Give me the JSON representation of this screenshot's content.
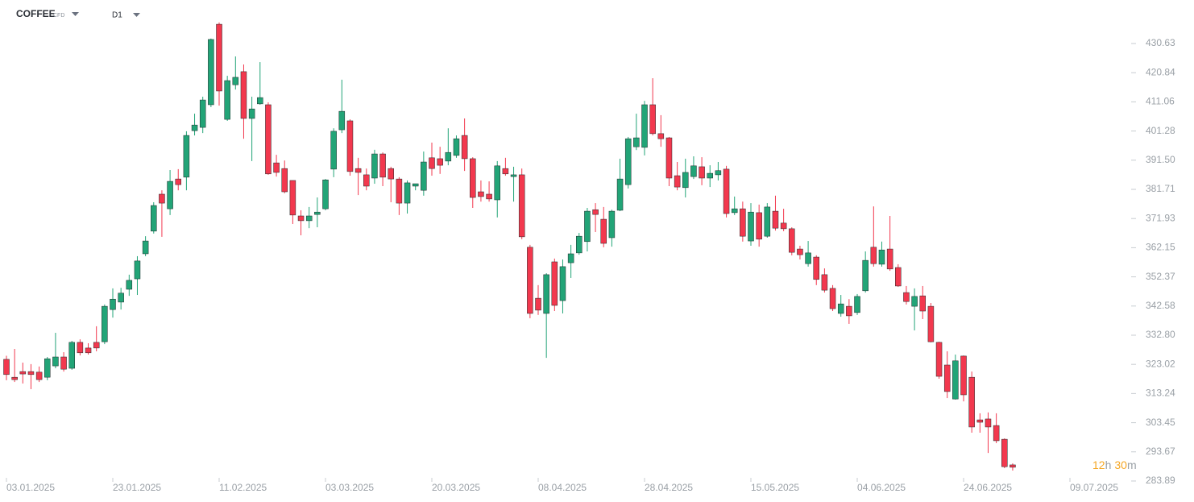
{
  "header": {
    "symbol": "COFFEE",
    "instrument": "CFD",
    "timeframe": "D1"
  },
  "countdown": [
    "12",
    "h",
    "30",
    "m"
  ],
  "chart_data": {
    "type": "candlestick",
    "up_color": "#22a477",
    "down_color": "#f2384e",
    "ylim": [
      276.85,
      445.23
    ],
    "yticks": [
      430.63,
      420.84,
      411.06,
      401.28,
      {
        "value": 391.5,
        "label": "391.50"
      },
      381.71,
      371.93,
      362.15,
      352.37,
      342.58,
      {
        "value": 332.8,
        "label": "332.80"
      },
      323.02,
      313.24,
      303.45,
      293.67,
      283.89
    ],
    "categories": [
      "03.01.2025",
      null,
      null,
      null,
      null,
      null,
      null,
      null,
      null,
      null,
      null,
      null,
      null,
      "23.01.2025",
      null,
      null,
      null,
      null,
      null,
      null,
      null,
      null,
      null,
      null,
      null,
      null,
      "11.02.2025",
      null,
      null,
      null,
      null,
      null,
      null,
      null,
      null,
      null,
      null,
      null,
      null,
      "03.03.2025",
      null,
      null,
      null,
      null,
      null,
      null,
      null,
      null,
      null,
      null,
      null,
      null,
      "20.03.2025",
      null,
      null,
      null,
      null,
      null,
      null,
      null,
      null,
      null,
      null,
      null,
      null,
      "08.04.2025",
      null,
      null,
      null,
      null,
      null,
      null,
      null,
      null,
      null,
      null,
      null,
      null,
      "28.04.2025",
      null,
      null,
      null,
      null,
      null,
      null,
      null,
      null,
      null,
      null,
      null,
      null,
      "15.05.2025",
      null,
      null,
      null,
      null,
      null,
      null,
      null,
      null,
      null,
      null,
      null,
      null,
      "04.06.2025",
      null,
      null,
      null,
      null,
      null,
      null,
      null,
      null,
      null,
      null,
      null,
      null,
      "24.06.2025",
      null,
      null,
      null,
      null,
      null,
      null,
      null,
      null,
      null,
      null,
      null,
      null,
      "09.07.2025"
    ],
    "open": [
      324.7,
      318.7,
      320.6,
      320.6,
      320.4,
      318.7,
      322.5,
      325.5,
      321.7,
      330.4,
      328.5,
      330.4,
      330.6,
      341.4,
      343.9,
      348.2,
      351.7,
      360.1,
      367.7,
      380.1,
      375.2,
      385.2,
      385.8,
      401.4,
      402.5,
      410.1,
      437.1,
      405.2,
      416.8,
      421.2,
      405.5,
      410.4,
      410.1,
      390.6,
      388.7,
      384.7,
      372.8,
      371.2,
      373.3,
      375.2,
      388.5,
      401.7,
      404.7,
      388.7,
      386.6,
      385.5,
      393.6,
      388.7,
      385.2,
      377.1,
      382.8,
      381.4,
      392.3,
      392.0,
      391.2,
      393.1,
      399.8,
      392.0,
      380.9,
      380.1,
      378.2,
      388.7,
      386.0,
      386.6,
      362.3,
      345.2,
      340.1,
      357.4,
      344.4,
      357.1,
      360.4,
      364.2,
      374.9,
      371.7,
      365.5,
      374.7,
      383.3,
      396.0,
      395.8,
      410.1,
      400.4,
      399.0,
      386.3,
      382.3,
      386.0,
      389.3,
      385.5,
      386.6,
      388.5,
      373.9,
      375.2,
      364.4,
      373.9,
      366.0,
      374.4,
      370.4,
      368.5,
      361.7,
      356.8,
      359.0,
      353.1,
      348.5,
      340.1,
      342.5,
      340.4,
      347.7,
      362.3,
      356.6,
      361.7,
      355.5,
      347.1,
      342.5,
      346.0,
      342.5,
      330.4,
      322.8,
      311.4,
      325.8,
      318.7,
      304.4,
      304.7,
      302.5,
      297.9,
      289.3,
      null,
      null,
      null,
      null,
      null,
      null,
      null
    ],
    "high": [
      325.9,
      328.2,
      323.6,
      323.1,
      322.3,
      325.5,
      333.6,
      327.1,
      330.9,
      331.4,
      330.1,
      335.8,
      343.1,
      348.5,
      348.7,
      353.1,
      359.3,
      366.0,
      377.4,
      381.4,
      388.2,
      388.5,
      401.2,
      407.1,
      412.8,
      432.3,
      437.7,
      419.8,
      426.3,
      423.6,
      412.8,
      424.4,
      410.9,
      393.3,
      391.4,
      384.7,
      374.7,
      375.8,
      379.0,
      385.2,
      402.2,
      418.5,
      405.2,
      392.3,
      388.7,
      395.0,
      394.1,
      389.3,
      385.8,
      384.7,
      383.6,
      394.4,
      397.4,
      396.0,
      402.2,
      399.8,
      405.5,
      392.5,
      384.7,
      384.4,
      391.2,
      392.3,
      389.3,
      388.7,
      363.1,
      349.6,
      353.6,
      358.5,
      358.2,
      363.1,
      367.1,
      375.5,
      377.1,
      375.8,
      374.9,
      392.0,
      399.3,
      407.1,
      411.4,
      419.0,
      406.6,
      399.3,
      390.9,
      392.0,
      392.8,
      392.5,
      389.8,
      390.9,
      389.6,
      379.3,
      377.6,
      377.1,
      376.6,
      377.1,
      379.6,
      375.2,
      369.0,
      362.8,
      364.4,
      359.6,
      355.2,
      349.6,
      346.3,
      344.9,
      346.6,
      360.9,
      376.0,
      364.2,
      372.8,
      356.6,
      349.3,
      348.5,
      349.3,
      343.6,
      330.6,
      327.4,
      326.3,
      326.0,
      320.6,
      306.6,
      306.9,
      306.6,
      298.2,
      289.8,
      null,
      null,
      null,
      null,
      null,
      null,
      null
    ],
    "low": [
      317.7,
      317.1,
      316.6,
      314.7,
      317.1,
      317.7,
      321.7,
      320.6,
      321.2,
      326.0,
      326.3,
      327.4,
      329.8,
      338.7,
      341.4,
      346.0,
      346.3,
      359.3,
      366.9,
      365.8,
      373.1,
      381.4,
      381.4,
      399.8,
      400.6,
      409.3,
      409.8,
      404.7,
      415.2,
      398.7,
      391.2,
      410.1,
      386.6,
      386.0,
      380.4,
      370.1,
      366.3,
      368.7,
      369.0,
      374.7,
      385.8,
      400.6,
      386.3,
      379.8,
      381.4,
      383.6,
      382.8,
      377.4,
      373.1,
      373.6,
      381.4,
      379.6,
      386.3,
      386.9,
      389.8,
      392.3,
      387.9,
      375.5,
      377.6,
      377.6,
      372.3,
      386.3,
      377.6,
      365.0,
      338.5,
      339.6,
      325.2,
      340.9,
      340.1,
      352.0,
      359.8,
      360.9,
      367.4,
      362.3,
      362.5,
      374.4,
      382.0,
      394.9,
      393.1,
      399.8,
      396.0,
      382.8,
      381.4,
      379.0,
      385.2,
      383.1,
      382.5,
      384.7,
      372.3,
      373.1,
      364.2,
      362.8,
      362.5,
      365.5,
      367.9,
      367.7,
      359.6,
      358.2,
      355.8,
      349.6,
      347.1,
      340.9,
      339.0,
      336.6,
      339.6,
      347.1,
      355.8,
      355.8,
      354.4,
      349.0,
      343.1,
      334.4,
      338.2,
      330.4,
      318.2,
      311.7,
      311.2,
      310.6,
      300.1,
      300.1,
      293.3,
      296.6,
      288.2,
      287.4,
      null,
      null,
      null,
      null,
      null,
      null,
      null
    ],
    "close": [
      319.6,
      317.9,
      319.8,
      319.6,
      317.9,
      324.9,
      325.5,
      321.4,
      330.4,
      326.9,
      326.9,
      328.5,
      342.5,
      344.9,
      346.9,
      351.2,
      357.7,
      364.4,
      376.3,
      377.1,
      384.4,
      383.3,
      399.8,
      403.3,
      411.7,
      432.0,
      414.7,
      418.2,
      419.3,
      405.5,
      408.7,
      412.5,
      386.9,
      387.4,
      380.9,
      373.1,
      371.2,
      372.8,
      374.1,
      384.9,
      401.2,
      407.9,
      387.7,
      387.4,
      382.8,
      393.6,
      385.8,
      385.2,
      377.1,
      383.9,
      383.6,
      390.9,
      388.7,
      389.8,
      394.1,
      398.7,
      392.0,
      379.0,
      379.3,
      378.5,
      389.6,
      386.9,
      386.6,
      365.8,
      340.1,
      341.2,
      353.1,
      342.8,
      355.8,
      360.1,
      366.0,
      374.4,
      373.3,
      363.6,
      374.4,
      385.2,
      398.7,
      399.0,
      410.1,
      400.4,
      398.7,
      385.5,
      382.5,
      387.4,
      389.6,
      385.5,
      387.1,
      388.0,
      373.6,
      375.2,
      366.0,
      374.1,
      365.0,
      375.8,
      368.7,
      368.5,
      360.6,
      359.8,
      360.4,
      351.5,
      347.9,
      341.7,
      343.3,
      339.3,
      345.8,
      357.9,
      356.8,
      361.4,
      355.0,
      349.3,
      344.1,
      345.8,
      340.9,
      330.6,
      319.0,
      313.9,
      324.2,
      312.8,
      302.0,
      303.6,
      302.0,
      297.4,
      288.7,
      288.5,
      null,
      null,
      null,
      null,
      null,
      null,
      null
    ]
  }
}
